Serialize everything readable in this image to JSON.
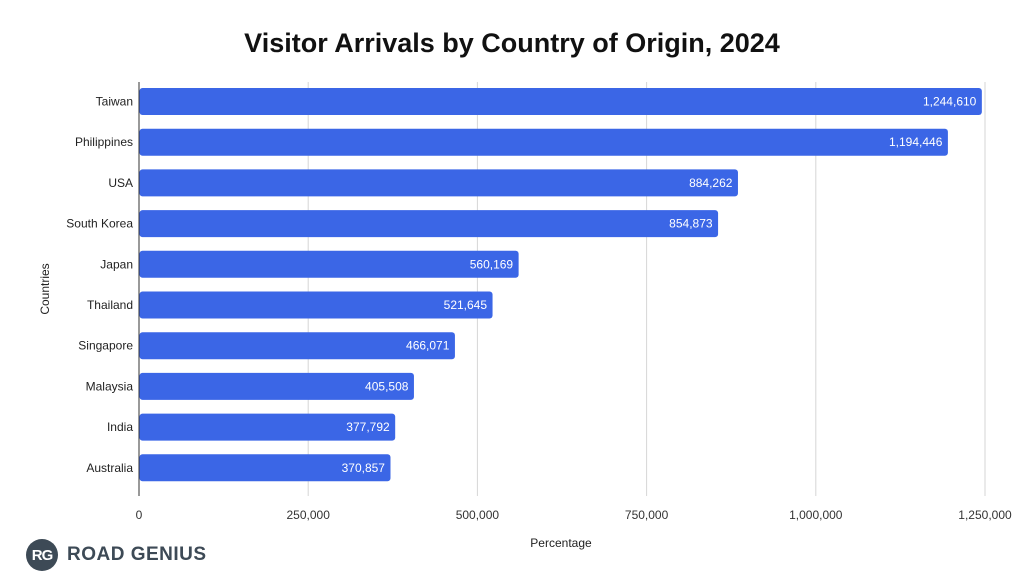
{
  "chart_data": {
    "type": "bar",
    "orientation": "horizontal",
    "title": "Visitor Arrivals by Country of Origin, 2024",
    "xlabel": "Percentage",
    "ylabel": "Countries",
    "categories": [
      "Taiwan",
      "Philippines",
      "USA",
      "South Korea",
      "Japan",
      "Thailand",
      "Singapore",
      "Malaysia",
      "India",
      "Australia"
    ],
    "values": [
      1244610,
      1194446,
      884262,
      854873,
      560169,
      521645,
      466071,
      405508,
      377792,
      370857
    ],
    "value_labels": [
      "1,244,610",
      "1,194,446",
      "884,262",
      "854,873",
      "560,169",
      "521,645",
      "466,071",
      "405,508",
      "377,792",
      "370,857"
    ],
    "xlim": [
      0,
      1250000
    ],
    "x_ticks": [
      0,
      250000,
      500000,
      750000,
      1000000,
      1250000
    ],
    "x_tick_labels": [
      "0",
      "250,000",
      "500,000",
      "750,000",
      "1,000,000",
      "1,250,000"
    ],
    "grid": "vertical",
    "bar_color": "#3b66e6",
    "legend": "none"
  },
  "logo": {
    "badge": "RG",
    "text": "ROAD GENIUS",
    "color": "#3d4a56"
  }
}
